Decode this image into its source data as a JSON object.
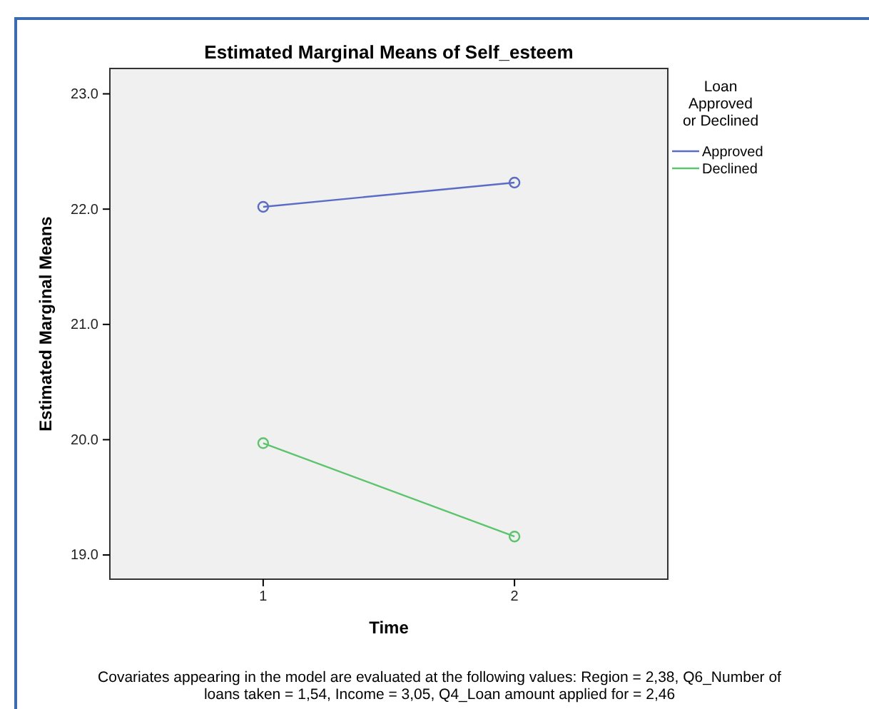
{
  "chart_data": {
    "type": "line",
    "title": "Estimated Marginal Means of Self_esteem",
    "xlabel": "Time",
    "ylabel": "Estimated Marginal Means",
    "legend_title": "Loan Approved or Declined",
    "categories": [
      "1",
      "2"
    ],
    "series": [
      {
        "name": "Approved",
        "color": "#5b6cc4",
        "values": [
          22.02,
          22.23
        ]
      },
      {
        "name": "Declined",
        "color": "#5cc46c",
        "values": [
          19.97,
          19.16
        ]
      }
    ],
    "ylim": [
      18.79,
      23.22
    ],
    "yticks": [
      {
        "value": 19,
        "label": "19.0"
      },
      {
        "value": 20,
        "label": "20.0"
      },
      {
        "value": 21,
        "label": "21.0"
      },
      {
        "value": 22,
        "label": "22.0"
      },
      {
        "value": 23,
        "label": "23.0"
      }
    ],
    "grid": false,
    "legend": "top right",
    "marker": "circle",
    "line_style": "solid",
    "annotations": [
      "Covariates appearing in the model are evaluated at the following values: Region = 2,38, Q6_Number of loans taken = 1,54, Income = 3,05, Q4_Loan amount applied for = 2,46"
    ]
  }
}
